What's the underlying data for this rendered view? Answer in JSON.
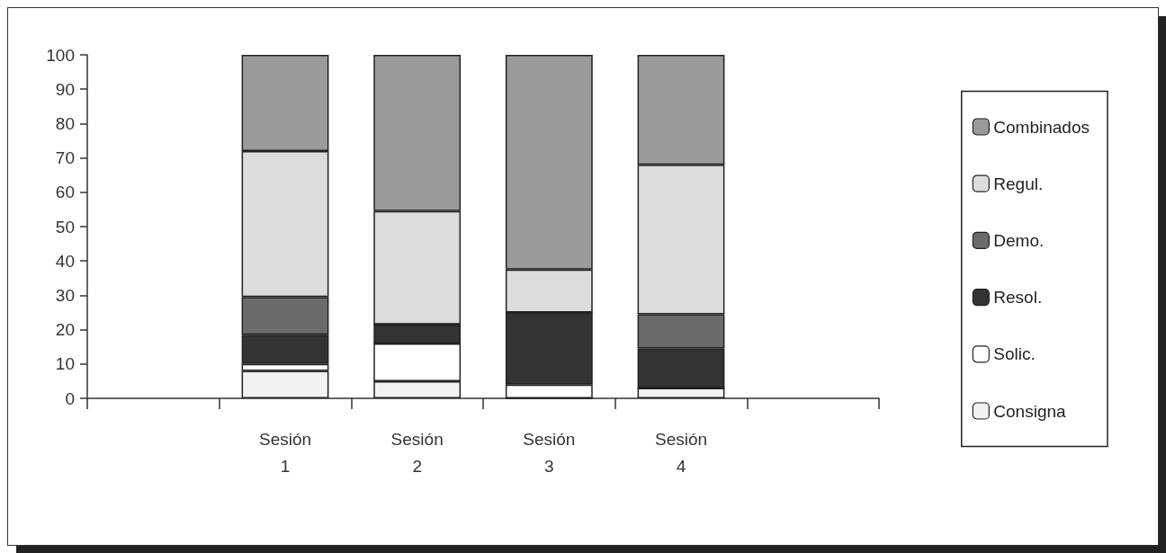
{
  "chart_data": {
    "type": "bar",
    "stacked": true,
    "categories": [
      null,
      "Sesión\n1",
      "Sesión\n2",
      "Sesión\n3",
      "Sesión\n4",
      null
    ],
    "series": [
      {
        "name": "Consigna",
        "color": "#f2f2f2",
        "values": [
          null,
          8,
          5,
          0,
          3,
          null
        ]
      },
      {
        "name": "Solic.",
        "color": "#ffffff",
        "values": [
          null,
          2,
          11,
          4,
          0,
          null
        ]
      },
      {
        "name": "Resol.",
        "color": "#333333",
        "values": [
          null,
          8.5,
          5.5,
          21,
          11.5,
          null
        ]
      },
      {
        "name": "Demo.",
        "color": "#6b6b6b",
        "values": [
          null,
          11,
          0,
          0,
          10,
          null
        ]
      },
      {
        "name": "Regul.",
        "color": "#dcdcdc",
        "values": [
          null,
          42.5,
          33,
          12.5,
          43.5,
          null
        ]
      },
      {
        "name": "Combinados",
        "color": "#9a9a9a",
        "values": [
          null,
          28,
          45.5,
          62.5,
          32,
          null
        ]
      }
    ],
    "ylim": [
      0,
      100
    ],
    "yticks": [
      0,
      10,
      20,
      30,
      40,
      50,
      60,
      70,
      80,
      90,
      100
    ],
    "grid": false,
    "legend": "right"
  }
}
